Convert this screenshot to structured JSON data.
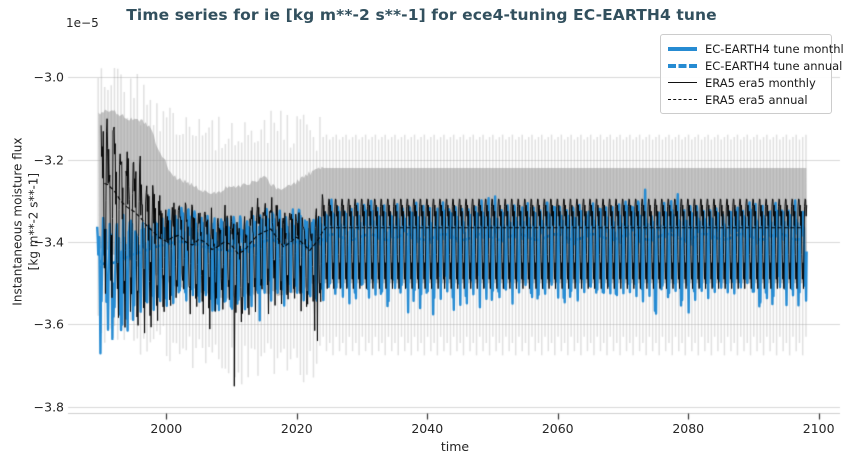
{
  "figure": {
    "title": "Time series for ie [kg m**-2 s**-1] for ece4-tuning EC-EARTH4 tune",
    "offset_text": "1e−5",
    "xlabel": "time",
    "ylabel_line1": "Instantaneous moisture flux",
    "ylabel_line2": "[kg m**-2 s**-1]"
  },
  "legend": {
    "position": "upper right",
    "items": [
      {
        "label": "EC-EARTH4 tune monthly",
        "color": "#268bd2",
        "dashed": false,
        "thickness": 4
      },
      {
        "label": "EC-EARTH4 tune annual",
        "color": "#268bd2",
        "dashed": true,
        "thickness": 4
      },
      {
        "label": "ERA5 era5 monthly",
        "color": "#111111",
        "dashed": false,
        "thickness": 1.5
      },
      {
        "label": "ERA5 era5 annual",
        "color": "#111111",
        "dashed": true,
        "thickness": 1.5
      }
    ]
  },
  "chart_data": {
    "type": "line",
    "title": "Time series for ie [kg m**-2 s**-1] for ece4-tuning EC-EARTH4 tune",
    "xlabel": "time",
    "ylabel": "Instantaneous moisture flux [kg m**-2 s**-1]",
    "y_offset_multiplier": "1e-5",
    "grid": "horizontal",
    "legend_position": "upper right",
    "xlim": [
      1986,
      2102.5
    ],
    "ylim": [
      -3.815,
      -2.897
    ],
    "x_ticks": [
      2000,
      2020,
      2040,
      2060,
      2080,
      2100
    ],
    "x_tick_labels": [
      "2000",
      "2020",
      "2040",
      "2060",
      "2080",
      "2100"
    ],
    "y_ticks": [
      -3.0,
      -3.2,
      -3.4,
      -3.6,
      -3.8
    ],
    "y_tick_labels": [
      "−3.0",
      "−3.2",
      "−3.4",
      "−3.6",
      "−3.8"
    ],
    "time_range_years": [
      1990,
      2098
    ],
    "colors": {
      "model_blue": "#268bd2",
      "era5_black": "#000000",
      "spread_band": "rgba(150,150,150,0.55)",
      "minmax_stripes": "rgba(160,160,160,0.33)",
      "gridline": "#d9d9d9",
      "spine": "#cfcfcf",
      "tickmark": "#333333"
    },
    "seasonal_climatology_1e5": [
      0.068,
      0.028,
      0.055,
      0.005,
      0.04,
      -0.065,
      -0.125,
      -0.085,
      -0.148,
      -0.04,
      0.052,
      0.07
    ],
    "series": [
      {
        "name": "EC-EARTH4 tune monthly",
        "style": "solid",
        "width": 2.4,
        "color": "#268bd2",
        "seasonal_range_after_2024": [
          -3.33,
          -3.56
        ],
        "start_year": 1989.4,
        "deep_dips": [
          [
            1989.9,
            -3.67
          ],
          [
            1991.75,
            -3.635
          ],
          [
            1993.25,
            -3.6
          ],
          [
            2007.5,
            -3.565
          ],
          [
            2014.33,
            -3.59
          ]
        ]
      },
      {
        "name": "EC-EARTH4 tune annual",
        "style": "dashed",
        "width": 2.6,
        "color": "#268bd2",
        "annual_mean_points": [
          [
            1989.4,
            -3.44
          ],
          [
            1990.5,
            -3.455
          ],
          [
            1992,
            -3.45
          ],
          [
            1993.5,
            -3.44
          ],
          [
            1995,
            -3.43
          ],
          [
            1996.5,
            -3.422
          ],
          [
            1998,
            -3.413
          ],
          [
            2000,
            -3.405
          ],
          [
            2002,
            -3.398
          ],
          [
            2004,
            -3.403
          ],
          [
            2006,
            -3.412
          ],
          [
            2008,
            -3.418
          ],
          [
            2010,
            -3.422
          ],
          [
            2012,
            -3.418
          ],
          [
            2014,
            -3.405
          ],
          [
            2016,
            -3.392
          ],
          [
            2018,
            -3.408
          ],
          [
            2020,
            -3.398
          ],
          [
            2022,
            -3.412
          ],
          [
            2023.5,
            -3.398
          ],
          [
            2025,
            -3.388
          ],
          [
            2098,
            -3.387
          ]
        ]
      },
      {
        "name": "ERA5 era5 monthly",
        "style": "solid",
        "width": 0.95,
        "color": "#000000",
        "seasonal_range_after_2024": [
          -3.3,
          -3.51
        ],
        "repeated_climatology_mean_after_2024": -3.365,
        "start_year": 1990,
        "deep_dips": [
          [
            1996.5,
            -3.56
          ],
          [
            2010.42,
            -3.75
          ],
          [
            2022.75,
            -3.615
          ],
          [
            2023.17,
            -3.64
          ]
        ]
      },
      {
        "name": "ERA5 era5 annual",
        "style": "dashed",
        "width": 1.1,
        "color": "#000000",
        "annual_mean_points": [
          [
            1990,
            -3.255
          ],
          [
            1991,
            -3.26
          ],
          [
            1992,
            -3.275
          ],
          [
            1993,
            -3.3
          ],
          [
            1994,
            -3.315
          ],
          [
            1995,
            -3.325
          ],
          [
            1996,
            -3.34
          ],
          [
            1997,
            -3.36
          ],
          [
            1998,
            -3.375
          ],
          [
            1999,
            -3.39
          ],
          [
            2000,
            -3.398
          ],
          [
            2001,
            -3.388
          ],
          [
            2002,
            -3.383
          ],
          [
            2003,
            -3.4
          ],
          [
            2004,
            -3.407
          ],
          [
            2005,
            -3.393
          ],
          [
            2006,
            -3.4
          ],
          [
            2007,
            -3.418
          ],
          [
            2008,
            -3.41
          ],
          [
            2009,
            -3.398
          ],
          [
            2010,
            -3.408
          ],
          [
            2011,
            -3.428
          ],
          [
            2012,
            -3.42
          ],
          [
            2013,
            -3.4
          ],
          [
            2014,
            -3.383
          ],
          [
            2015,
            -3.375
          ],
          [
            2016,
            -3.368
          ],
          [
            2017,
            -3.39
          ],
          [
            2018,
            -3.412
          ],
          [
            2019,
            -3.4
          ],
          [
            2020,
            -3.388
          ],
          [
            2021,
            -3.405
          ],
          [
            2022,
            -3.42
          ],
          [
            2023,
            -3.4
          ],
          [
            2023.8,
            -3.382
          ],
          [
            2024.2,
            -3.365
          ],
          [
            2098,
            -3.365
          ]
        ]
      }
    ],
    "synthesis": {
      "seasonal_scale_points": [
        [
          1989,
          1.9
        ],
        [
          1994,
          1.75
        ],
        [
          1997,
          1.5
        ],
        [
          1999,
          1.15
        ],
        [
          2001,
          1.0
        ],
        [
          2098,
          1.0
        ]
      ],
      "spread_band_top_points": [
        [
          1989.6,
          -3.085
        ],
        [
          1992,
          -3.08
        ],
        [
          1994,
          -3.1
        ],
        [
          1996,
          -3.105
        ],
        [
          1997.5,
          -3.12
        ],
        [
          1999,
          -3.18
        ],
        [
          2001,
          -3.24
        ],
        [
          2003,
          -3.255
        ],
        [
          2005,
          -3.27
        ],
        [
          2007,
          -3.285
        ],
        [
          2009,
          -3.27
        ],
        [
          2011,
          -3.265
        ],
        [
          2013,
          -3.255
        ],
        [
          2015,
          -3.24
        ],
        [
          2017,
          -3.275
        ],
        [
          2019,
          -3.265
        ],
        [
          2021,
          -3.24
        ],
        [
          2023,
          -3.225
        ],
        [
          2023.8,
          -3.22
        ],
        [
          2098,
          -3.22
        ]
      ],
      "spread_band_bottom_points": [
        [
          1989.6,
          -3.415
        ],
        [
          1992,
          -3.43
        ],
        [
          1994,
          -3.445
        ],
        [
          1996,
          -3.46
        ],
        [
          1998,
          -3.475
        ],
        [
          2000,
          -3.495
        ],
        [
          2003,
          -3.51
        ],
        [
          2006,
          -3.525
        ],
        [
          2009,
          -3.535
        ],
        [
          2012,
          -3.53
        ],
        [
          2015,
          -3.52
        ],
        [
          2018,
          -3.53
        ],
        [
          2021,
          -3.515
        ],
        [
          2023,
          -3.5
        ],
        [
          2098,
          -3.5
        ]
      ],
      "stripe_top_points": [
        [
          1989.5,
          -3.0
        ],
        [
          1992,
          -2.995
        ],
        [
          1994,
          -3.01
        ],
        [
          1996,
          -3.04
        ],
        [
          1998,
          -3.08
        ],
        [
          2000,
          -3.115
        ],
        [
          2005,
          -3.13
        ],
        [
          2010,
          -3.135
        ],
        [
          2015,
          -3.12
        ],
        [
          2020,
          -3.13
        ],
        [
          2023.9,
          -3.14
        ]
      ],
      "stripe_bottom_points": [
        [
          1989.5,
          -3.6
        ],
        [
          1994,
          -3.62
        ],
        [
          1998,
          -3.64
        ],
        [
          2002,
          -3.66
        ],
        [
          2008,
          -3.67
        ],
        [
          2013,
          -3.7
        ],
        [
          2018,
          -3.665
        ],
        [
          2023,
          -3.7
        ],
        [
          2023.9,
          -3.66
        ]
      ],
      "stripe_top_after_2024": -3.145,
      "stripe_bottom_after_2024": -3.63
    }
  }
}
